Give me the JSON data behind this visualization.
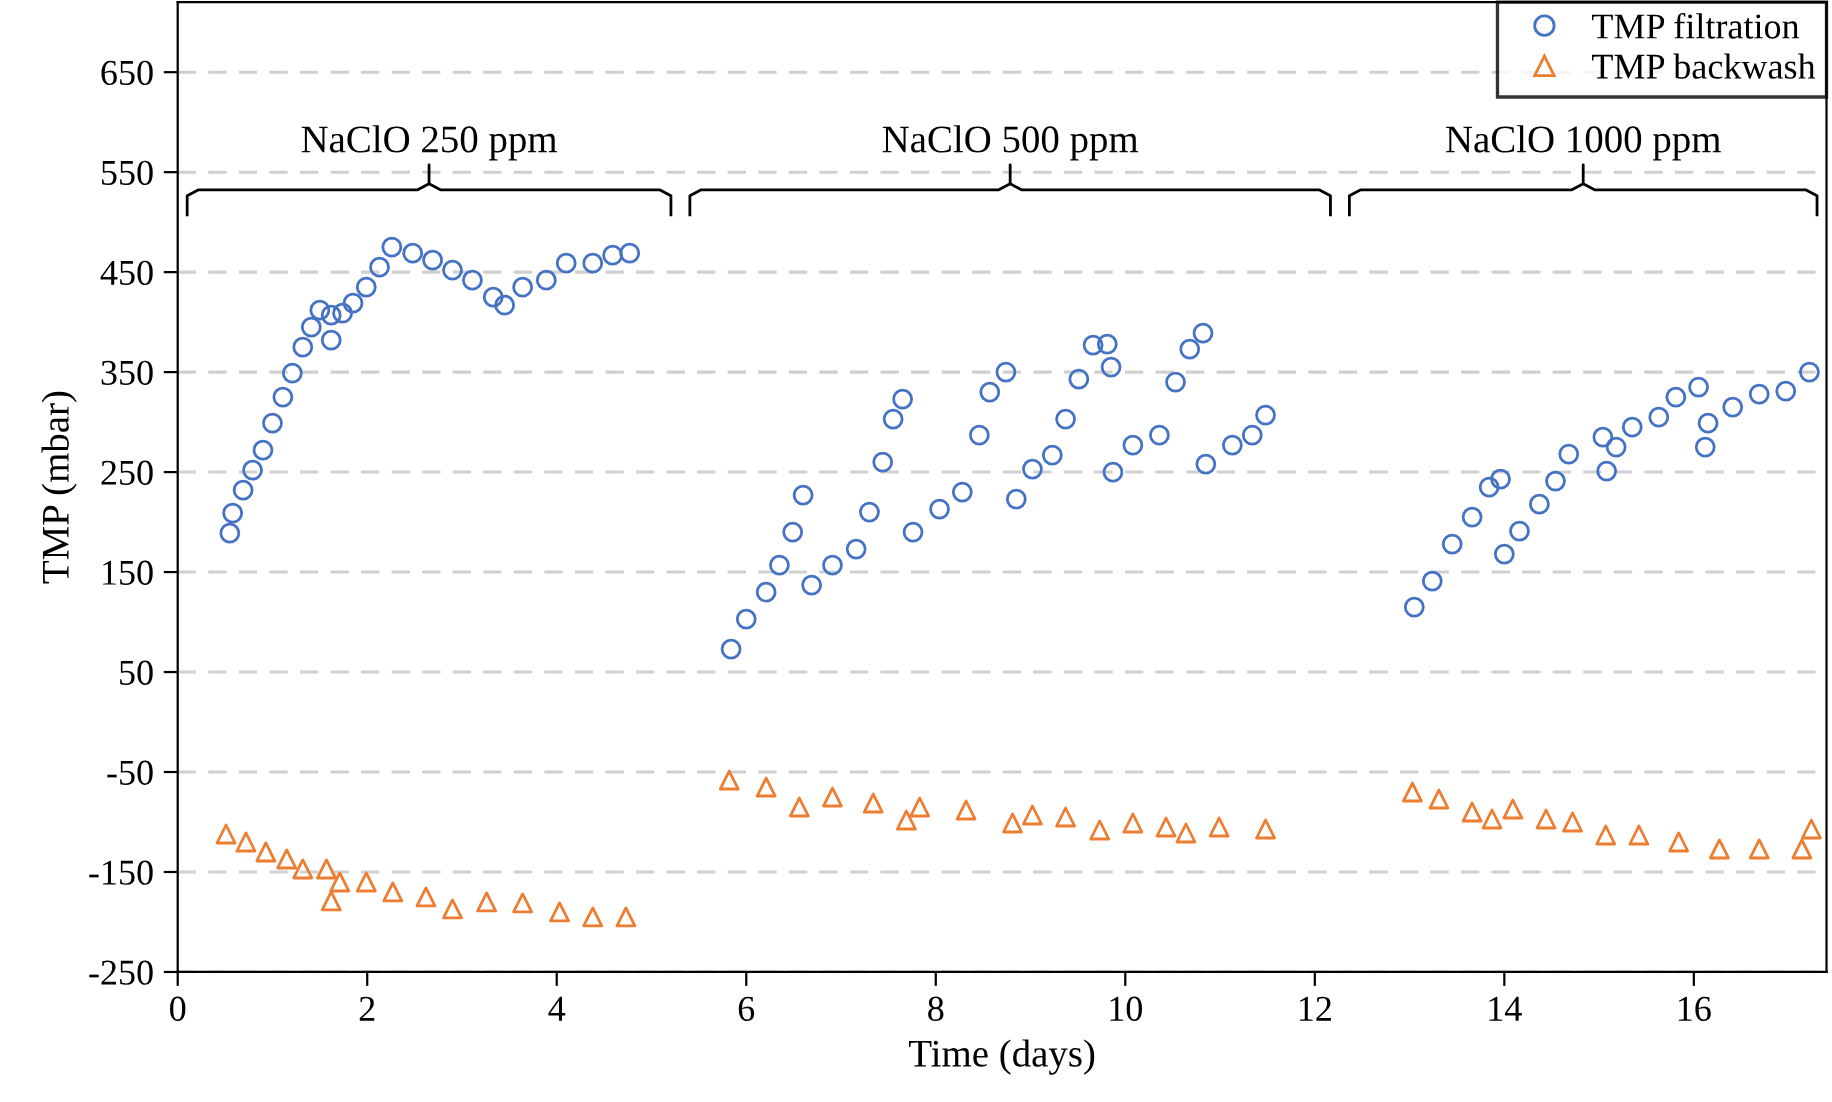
{
  "chart_data": {
    "type": "scatter",
    "xlabel": "Time (days)",
    "ylabel": "TMP (mbar)",
    "xlim": [
      0,
      17.4
    ],
    "ylim": [
      -250,
      720
    ],
    "xticks": [
      0,
      2,
      4,
      6,
      8,
      10,
      12,
      14,
      16
    ],
    "yticks": [
      -250,
      -150,
      -50,
      50,
      150,
      250,
      350,
      450,
      550,
      650
    ],
    "grid": "y",
    "legend": "top right",
    "annotations": [
      "NaClO 250 ppm",
      "NaClO 500 ppm",
      "NaClO 1000 ppm"
    ],
    "series": [
      {
        "name": "TMP filtration",
        "color": "#4472c4",
        "marker": "circle",
        "x": [
          0.55,
          0.58,
          0.69,
          0.79,
          0.9,
          1.0,
          1.11,
          1.21,
          1.32,
          1.41,
          1.5,
          1.62,
          1.62,
          1.74,
          1.85,
          1.99,
          2.13,
          2.26,
          2.48,
          2.69,
          2.9,
          3.11,
          3.33,
          3.45,
          3.64,
          3.89,
          4.1,
          4.38,
          4.59,
          4.77,
          5.84,
          6.0,
          6.21,
          6.35,
          6.49,
          6.6,
          6.69,
          6.91,
          7.16,
          7.3,
          7.44,
          7.55,
          7.65,
          7.76,
          8.04,
          8.28,
          8.46,
          8.57,
          8.74,
          8.85,
          9.02,
          9.23,
          9.37,
          9.51,
          9.66,
          9.81,
          9.85,
          9.87,
          10.08,
          10.36,
          10.53,
          10.68,
          10.82,
          10.85,
          11.13,
          11.34,
          11.48,
          13.05,
          13.24,
          13.45,
          13.66,
          13.84,
          13.96,
          14.0,
          14.16,
          14.37,
          14.54,
          14.68,
          15.04,
          15.08,
          15.18,
          15.35,
          15.63,
          15.81,
          16.05,
          16.12,
          16.15,
          16.41,
          16.69,
          16.97,
          17.22
        ],
        "values": [
          189,
          209,
          232,
          252,
          272,
          299,
          325,
          349,
          375,
          395,
          412,
          407,
          382,
          409,
          419,
          435,
          455,
          475,
          469,
          462,
          452,
          442,
          425,
          417,
          435,
          442,
          459,
          459,
          467,
          469,
          73,
          103,
          130,
          157,
          190,
          227,
          137,
          157,
          173,
          210,
          260,
          303,
          323,
          190,
          213,
          230,
          287,
          330,
          350,
          223,
          253,
          267,
          303,
          343,
          377,
          378,
          355,
          250,
          277,
          287,
          340,
          373,
          389,
          258,
          277,
          287,
          307,
          115,
          141,
          178,
          205,
          235,
          243,
          168,
          191,
          218,
          241,
          268,
          285,
          251,
          275,
          295,
          305,
          325,
          335,
          275,
          299,
          315,
          328,
          331,
          350
        ]
      },
      {
        "name": "TMP backwash",
        "color": "#ed7d31",
        "marker": "triangle",
        "x": [
          0.51,
          0.72,
          0.93,
          1.15,
          1.32,
          1.57,
          1.62,
          1.71,
          1.99,
          2.27,
          2.62,
          2.9,
          3.26,
          3.64,
          4.03,
          4.38,
          4.73,
          5.82,
          6.21,
          6.56,
          6.91,
          7.34,
          7.69,
          7.83,
          8.32,
          8.81,
          9.02,
          9.37,
          9.73,
          10.08,
          10.43,
          10.64,
          10.99,
          11.48,
          13.03,
          13.31,
          13.66,
          13.87,
          14.09,
          14.44,
          14.72,
          15.07,
          15.42,
          15.84,
          16.27,
          16.69,
          17.14,
          17.24
        ],
        "values": [
          -112,
          -120,
          -130,
          -137,
          -147,
          -147,
          -179,
          -160,
          -160,
          -170,
          -175,
          -187,
          -180,
          -181,
          -190,
          -195,
          -195,
          -58,
          -65,
          -85,
          -75,
          -81,
          -98,
          -85,
          -88,
          -101,
          -93,
          -95,
          -108,
          -101,
          -105,
          -111,
          -105,
          -107,
          -70,
          -77,
          -90,
          -97,
          -87,
          -97,
          -100,
          -113,
          -113,
          -120,
          -127,
          -127,
          -127,
          -107
        ]
      }
    ]
  }
}
